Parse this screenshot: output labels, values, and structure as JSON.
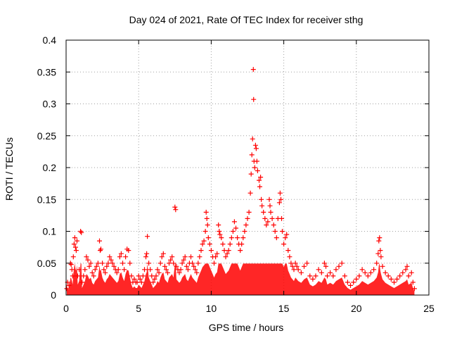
{
  "chart_data": {
    "type": "scatter",
    "title": "Day 024 of 2021, Rate Of TEC Index for receiver sthg",
    "xlabel": "GPS time / hours",
    "ylabel": "ROTI / TECUs",
    "xlim": [
      0,
      25
    ],
    "ylim": [
      0,
      0.4
    ],
    "xticks": [
      0,
      5,
      10,
      15,
      20,
      25
    ],
    "yticks": [
      0,
      0.05,
      0.1,
      0.15,
      0.2,
      0.25,
      0.3,
      0.35,
      0.4
    ],
    "xtick_labels": [
      "0",
      "5",
      "10",
      "15",
      "20",
      "25"
    ],
    "ytick_labels": [
      "0",
      "0.05",
      "0.1",
      "0.15",
      "0.2",
      "0.25",
      "0.3",
      "0.35",
      "0.4"
    ],
    "grid": true,
    "marker": "+",
    "color": "#ff0000",
    "series": [
      {
        "name": "ROTI",
        "points": [
          [
            0.05,
            0.01
          ],
          [
            0.1,
            0.02
          ],
          [
            0.2,
            0.015
          ],
          [
            0.3,
            0.05
          ],
          [
            0.35,
            0.048
          ],
          [
            0.4,
            0.04
          ],
          [
            0.45,
            0.03
          ],
          [
            0.5,
            0.06
          ],
          [
            0.55,
            0.08
          ],
          [
            0.6,
            0.09
          ],
          [
            0.65,
            0.075
          ],
          [
            0.7,
            0.07
          ],
          [
            0.75,
            0.085
          ],
          [
            0.8,
            0.03
          ],
          [
            0.9,
            0.04
          ],
          [
            1.0,
            0.1
          ],
          [
            1.05,
            0.098
          ],
          [
            1.1,
            0.02
          ],
          [
            1.2,
            0.03
          ],
          [
            1.3,
            0.04
          ],
          [
            1.4,
            0.06
          ],
          [
            1.5,
            0.055
          ],
          [
            1.6,
            0.045
          ],
          [
            1.7,
            0.05
          ],
          [
            1.8,
            0.035
          ],
          [
            1.9,
            0.03
          ],
          [
            2.0,
            0.04
          ],
          [
            2.1,
            0.045
          ],
          [
            2.2,
            0.05
          ],
          [
            2.3,
            0.085
          ],
          [
            2.35,
            0.07
          ],
          [
            2.4,
            0.072
          ],
          [
            2.5,
            0.05
          ],
          [
            2.6,
            0.04
          ],
          [
            2.7,
            0.035
          ],
          [
            2.8,
            0.045
          ],
          [
            2.9,
            0.05
          ],
          [
            3.0,
            0.06
          ],
          [
            3.1,
            0.055
          ],
          [
            3.2,
            0.05
          ],
          [
            3.3,
            0.045
          ],
          [
            3.4,
            0.04
          ],
          [
            3.5,
            0.035
          ],
          [
            3.6,
            0.04
          ],
          [
            3.7,
            0.06
          ],
          [
            3.8,
            0.065
          ],
          [
            3.9,
            0.05
          ],
          [
            4.0,
            0.04
          ],
          [
            4.1,
            0.06
          ],
          [
            4.2,
            0.072
          ],
          [
            4.3,
            0.07
          ],
          [
            4.4,
            0.05
          ],
          [
            4.5,
            0.03
          ],
          [
            4.6,
            0.02
          ],
          [
            4.7,
            0.025
          ],
          [
            4.8,
            0.02
          ],
          [
            4.9,
            0.02
          ],
          [
            5.0,
            0.03
          ],
          [
            5.1,
            0.025
          ],
          [
            5.2,
            0.02
          ],
          [
            5.3,
            0.03
          ],
          [
            5.4,
            0.04
          ],
          [
            5.5,
            0.06
          ],
          [
            5.55,
            0.065
          ],
          [
            5.6,
            0.092
          ],
          [
            5.7,
            0.05
          ],
          [
            5.8,
            0.04
          ],
          [
            5.9,
            0.03
          ],
          [
            6.0,
            0.02
          ],
          [
            6.1,
            0.025
          ],
          [
            6.2,
            0.03
          ],
          [
            6.3,
            0.04
          ],
          [
            6.4,
            0.035
          ],
          [
            6.5,
            0.05
          ],
          [
            6.6,
            0.06
          ],
          [
            6.7,
            0.065
          ],
          [
            6.8,
            0.045
          ],
          [
            6.9,
            0.04
          ],
          [
            7.0,
            0.035
          ],
          [
            7.1,
            0.05
          ],
          [
            7.2,
            0.055
          ],
          [
            7.3,
            0.06
          ],
          [
            7.4,
            0.05
          ],
          [
            7.5,
            0.138
          ],
          [
            7.55,
            0.134
          ],
          [
            7.6,
            0.045
          ],
          [
            7.7,
            0.04
          ],
          [
            7.8,
            0.035
          ],
          [
            7.9,
            0.04
          ],
          [
            8.0,
            0.05
          ],
          [
            8.1,
            0.055
          ],
          [
            8.2,
            0.06
          ],
          [
            8.3,
            0.045
          ],
          [
            8.4,
            0.04
          ],
          [
            8.5,
            0.05
          ],
          [
            8.6,
            0.06
          ],
          [
            8.7,
            0.05
          ],
          [
            8.8,
            0.045
          ],
          [
            8.9,
            0.04
          ],
          [
            9.0,
            0.035
          ],
          [
            9.1,
            0.05
          ],
          [
            9.2,
            0.06
          ],
          [
            9.3,
            0.07
          ],
          [
            9.4,
            0.08
          ],
          [
            9.5,
            0.085
          ],
          [
            9.6,
            0.1
          ],
          [
            9.65,
            0.13
          ],
          [
            9.7,
            0.12
          ],
          [
            9.75,
            0.11
          ],
          [
            9.8,
            0.09
          ],
          [
            9.9,
            0.08
          ],
          [
            10.0,
            0.07
          ],
          [
            10.1,
            0.06
          ],
          [
            10.2,
            0.05
          ],
          [
            10.3,
            0.06
          ],
          [
            10.4,
            0.065
          ],
          [
            10.5,
            0.11
          ],
          [
            10.55,
            0.1
          ],
          [
            10.6,
            0.095
          ],
          [
            10.7,
            0.09
          ],
          [
            10.8,
            0.08
          ],
          [
            10.9,
            0.07
          ],
          [
            11.0,
            0.06
          ],
          [
            11.1,
            0.065
          ],
          [
            11.2,
            0.07
          ],
          [
            11.3,
            0.08
          ],
          [
            11.4,
            0.09
          ],
          [
            11.5,
            0.1
          ],
          [
            11.6,
            0.115
          ],
          [
            11.7,
            0.105
          ],
          [
            11.8,
            0.09
          ],
          [
            11.9,
            0.08
          ],
          [
            12.0,
            0.07
          ],
          [
            12.1,
            0.08
          ],
          [
            12.2,
            0.09
          ],
          [
            12.3,
            0.1
          ],
          [
            12.4,
            0.11
          ],
          [
            12.5,
            0.12
          ],
          [
            12.6,
            0.13
          ],
          [
            12.7,
            0.16
          ],
          [
            12.75,
            0.19
          ],
          [
            12.8,
            0.22
          ],
          [
            12.85,
            0.245
          ],
          [
            12.9,
            0.354
          ],
          [
            12.92,
            0.307
          ],
          [
            12.95,
            0.21
          ],
          [
            13.0,
            0.2
          ],
          [
            13.05,
            0.235
          ],
          [
            13.1,
            0.23
          ],
          [
            13.15,
            0.21
          ],
          [
            13.2,
            0.195
          ],
          [
            13.3,
            0.18
          ],
          [
            13.35,
            0.17
          ],
          [
            13.4,
            0.185
          ],
          [
            13.45,
            0.15
          ],
          [
            13.5,
            0.14
          ],
          [
            13.6,
            0.13
          ],
          [
            13.7,
            0.12
          ],
          [
            13.8,
            0.11
          ],
          [
            13.9,
            0.115
          ],
          [
            14.0,
            0.15
          ],
          [
            14.05,
            0.14
          ],
          [
            14.1,
            0.13
          ],
          [
            14.2,
            0.12
          ],
          [
            14.3,
            0.11
          ],
          [
            14.4,
            0.1
          ],
          [
            14.5,
            0.09
          ],
          [
            14.6,
            0.12
          ],
          [
            14.7,
            0.145
          ],
          [
            14.75,
            0.16
          ],
          [
            14.8,
            0.15
          ],
          [
            14.85,
            0.12
          ],
          [
            14.9,
            0.1
          ],
          [
            15.0,
            0.08
          ],
          [
            15.1,
            0.09
          ],
          [
            15.2,
            0.095
          ],
          [
            15.3,
            0.07
          ],
          [
            15.4,
            0.06
          ],
          [
            15.5,
            0.05
          ],
          [
            15.6,
            0.045
          ],
          [
            15.7,
            0.04
          ],
          [
            15.8,
            0.05
          ],
          [
            15.9,
            0.045
          ],
          [
            16.0,
            0.04
          ],
          [
            16.2,
            0.035
          ],
          [
            16.4,
            0.045
          ],
          [
            16.6,
            0.05
          ],
          [
            16.8,
            0.03
          ],
          [
            17.0,
            0.025
          ],
          [
            17.2,
            0.03
          ],
          [
            17.4,
            0.04
          ],
          [
            17.6,
            0.035
          ],
          [
            17.8,
            0.05
          ],
          [
            17.9,
            0.045
          ],
          [
            18.0,
            0.03
          ],
          [
            18.2,
            0.035
          ],
          [
            18.4,
            0.03
          ],
          [
            18.6,
            0.04
          ],
          [
            18.8,
            0.045
          ],
          [
            19.0,
            0.05
          ],
          [
            19.2,
            0.03
          ],
          [
            19.4,
            0.02
          ],
          [
            19.6,
            0.015
          ],
          [
            19.8,
            0.02
          ],
          [
            20.0,
            0.025
          ],
          [
            20.2,
            0.03
          ],
          [
            20.4,
            0.04
          ],
          [
            20.6,
            0.035
          ],
          [
            20.8,
            0.03
          ],
          [
            21.0,
            0.035
          ],
          [
            21.2,
            0.04
          ],
          [
            21.4,
            0.05
          ],
          [
            21.5,
            0.065
          ],
          [
            21.55,
            0.085
          ],
          [
            21.6,
            0.09
          ],
          [
            21.65,
            0.07
          ],
          [
            21.7,
            0.06
          ],
          [
            21.8,
            0.045
          ],
          [
            22.0,
            0.035
          ],
          [
            22.2,
            0.03
          ],
          [
            22.4,
            0.025
          ],
          [
            22.6,
            0.02
          ],
          [
            22.8,
            0.025
          ],
          [
            23.0,
            0.03
          ],
          [
            23.2,
            0.035
          ],
          [
            23.4,
            0.04
          ],
          [
            23.5,
            0.045
          ],
          [
            23.6,
            0.03
          ],
          [
            23.8,
            0.035
          ],
          [
            23.9,
            0.02
          ],
          [
            24.0,
            0.01
          ]
        ]
      }
    ]
  }
}
